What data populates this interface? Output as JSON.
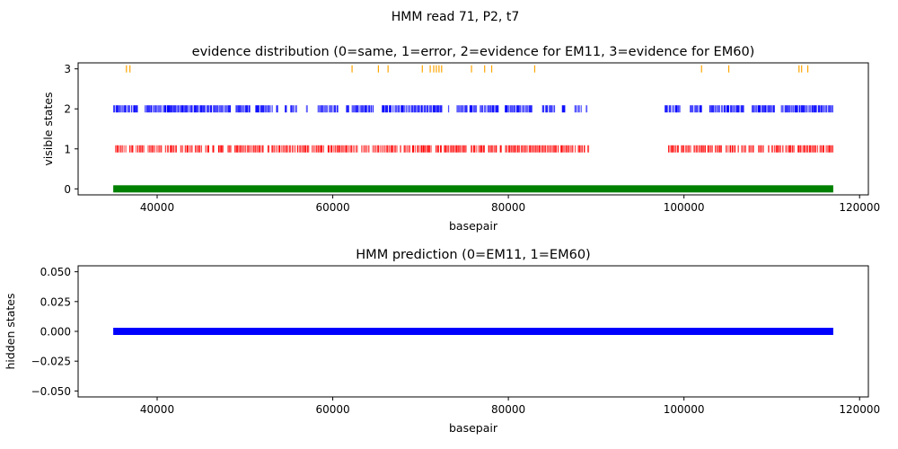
{
  "figure": {
    "suptitle": "HMM read 71, P2, t7"
  },
  "chart_data": [
    {
      "type": "scatter",
      "title": "evidence distribution (0=same, 1=error, 2=evidence for EM11, 3=evidence for EM60)",
      "xlabel": "basepair",
      "ylabel": "visible states",
      "xlim": [
        31000,
        121000
      ],
      "ylim": [
        -0.15,
        3.15
      ],
      "xticks": [
        40000,
        60000,
        80000,
        100000,
        120000
      ],
      "xtick_labels": [
        "40000",
        "60000",
        "80000",
        "100000",
        "120000"
      ],
      "yticks": [
        0,
        1,
        2,
        3
      ],
      "ytick_labels": [
        "0",
        "1",
        "2",
        "3"
      ],
      "grid": false,
      "series": [
        {
          "state": 0,
          "color": "#008000",
          "segments": [
            [
              35000,
              117000
            ]
          ]
        },
        {
          "state": 1,
          "color": "#ff0000",
          "segments": [
            [
              35200,
              89200
            ],
            [
              98200,
              117000
            ]
          ]
        },
        {
          "state": 2,
          "color": "#0000ff",
          "segments": [
            [
              35000,
              89000
            ],
            [
              97800,
              117000
            ]
          ]
        },
        {
          "state": 3,
          "color": "#ffa500",
          "points": [
            36500,
            36900,
            62200,
            65200,
            66300,
            70200,
            71100,
            71500,
            71800,
            72100,
            72400,
            75800,
            77300,
            78100,
            83000,
            102000,
            105100,
            113100,
            113400,
            114100
          ]
        }
      ]
    },
    {
      "type": "line",
      "title": "HMM prediction (0=EM11, 1=EM60)",
      "xlabel": "basepair",
      "ylabel": "hidden states",
      "xlim": [
        31000,
        121000
      ],
      "ylim": [
        -0.055,
        0.055
      ],
      "xticks": [
        40000,
        60000,
        80000,
        100000,
        120000
      ],
      "xtick_labels": [
        "40000",
        "60000",
        "80000",
        "100000",
        "120000"
      ],
      "yticks": [
        0.05,
        0.025,
        0.0,
        -0.025,
        -0.05
      ],
      "ytick_labels": [
        "0.050",
        "0.025",
        "0.000",
        "−0.025",
        "−0.050"
      ],
      "grid": false,
      "series": [
        {
          "state": 0,
          "color": "#0000ff",
          "segments": [
            [
              35000,
              117000
            ]
          ]
        }
      ]
    }
  ]
}
